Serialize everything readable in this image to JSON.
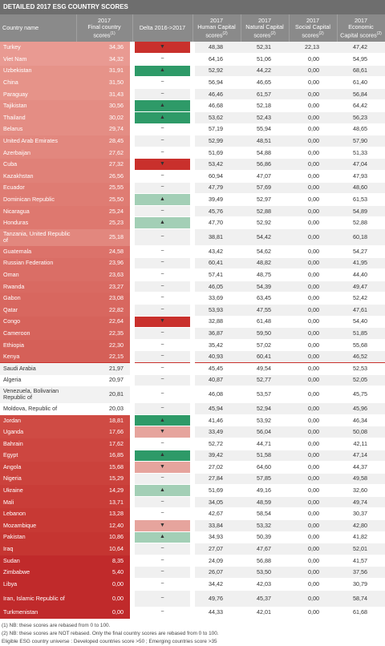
{
  "header": {
    "title": "DETAILED 2017 ESG COUNTRY SCORES"
  },
  "table": {
    "columns": [
      {
        "label": "Country name"
      },
      {
        "year": "2017",
        "label": "Final country scores",
        "note": "(1)"
      },
      {
        "label": "Delta 2016->2017"
      },
      {
        "year": "2017",
        "label": "Human Capital scores",
        "note": "(2)"
      },
      {
        "year": "2017",
        "label": "Natural Capital scores",
        "note": "(2)"
      },
      {
        "year": "2017",
        "label": "Social Capital scores",
        "note": "(2)"
      },
      {
        "year": "2017",
        "label": "Economic Capital scores",
        "note": "(2)"
      }
    ],
    "rows": [
      [
        "Turkey",
        "34,36",
        "▼",
        "48,38",
        "52,31",
        "22,13",
        "47,42"
      ],
      [
        "Viet Nam",
        "34,32",
        "~",
        "64,16",
        "51,06",
        "0,00",
        "54,95"
      ],
      [
        "Uzbekistan",
        "31,91",
        "▲",
        "52,92",
        "44,22",
        "0,00",
        "68,61"
      ],
      [
        "China",
        "31,50",
        "~",
        "56,94",
        "46,65",
        "0,00",
        "61,40"
      ],
      [
        "Paraguay",
        "31,43",
        "~",
        "46,46",
        "61,57",
        "0,00",
        "56,84"
      ],
      [
        "Tajikistan",
        "30,56",
        "▲",
        "46,68",
        "52,18",
        "0,00",
        "64,42"
      ],
      [
        "Thailand",
        "30,02",
        "▲",
        "53,62",
        "52,43",
        "0,00",
        "56,23"
      ],
      [
        "Belarus",
        "29,74",
        "~",
        "57,19",
        "55,94",
        "0,00",
        "48,65"
      ],
      [
        "United Arab Emirates",
        "28,45",
        "~",
        "52,99",
        "48,51",
        "0,00",
        "57,90"
      ],
      [
        "Azerbaijan",
        "27,62",
        "~",
        "51,69",
        "54,88",
        "0,00",
        "51,33"
      ],
      [
        "Cuba",
        "27,32",
        "▼",
        "53,42",
        "56,86",
        "0,00",
        "47,04"
      ],
      [
        "Kazakhstan",
        "26,56",
        "~",
        "60,94",
        "47,07",
        "0,00",
        "47,93"
      ],
      [
        "Ecuador",
        "25,55",
        "~",
        "47,79",
        "57,69",
        "0,00",
        "48,60"
      ],
      [
        "Dominican Republic",
        "25,50",
        "▲",
        "39,49",
        "52,97",
        "0,00",
        "61,53"
      ],
      [
        "Nicaragua",
        "25,24",
        "~",
        "45,76",
        "52,88",
        "0,00",
        "54,89"
      ],
      [
        "Honduras",
        "25,23",
        "▲",
        "47,70",
        "52,92",
        "0,00",
        "52,88"
      ],
      [
        "Tanzania, United Republic of",
        "25,18",
        "~",
        "38,81",
        "54,42",
        "0,00",
        "60,18"
      ],
      [
        "Guatemala",
        "24,58",
        "~",
        "43,42",
        "54,62",
        "0,00",
        "54,27"
      ],
      [
        "Russian Federation",
        "23,96",
        "~",
        "60,41",
        "48,82",
        "0,00",
        "41,95"
      ],
      [
        "Oman",
        "23,63",
        "~",
        "57,41",
        "48,75",
        "0,00",
        "44,40"
      ],
      [
        "Rwanda",
        "23,27",
        "~",
        "46,05",
        "54,39",
        "0,00",
        "49,47"
      ],
      [
        "Gabon",
        "23,08",
        "~",
        "33,69",
        "63,45",
        "0,00",
        "52,42"
      ],
      [
        "Qatar",
        "22,82",
        "~",
        "53,93",
        "47,55",
        "0,00",
        "47,61"
      ],
      [
        "Congo",
        "22,64",
        "▼",
        "32,88",
        "61,48",
        "0,00",
        "54,40"
      ],
      [
        "Cameroon",
        "22,35",
        "~",
        "36,87",
        "59,50",
        "0,00",
        "51,85"
      ],
      [
        "Ethiopia",
        "22,30",
        "~",
        "35,42",
        "57,02",
        "0,00",
        "55,68"
      ],
      [
        "Kenya",
        "22,15",
        "~",
        "40,93",
        "60,41",
        "0,00",
        "46,52"
      ],
      [
        "Saudi Arabia",
        "21,97",
        "~",
        "45,45",
        "49,54",
        "0,00",
        "52,53"
      ],
      [
        "Algeria",
        "20,97",
        "~",
        "40,87",
        "52,77",
        "0,00",
        "52,05"
      ],
      [
        "Venezuela, Bolivarian Republic of",
        "20,81",
        "~",
        "46,08",
        "53,57",
        "0,00",
        "45,75"
      ],
      [
        "Moldova, Republic of",
        "20,03",
        "~",
        "45,94",
        "52,94",
        "0,00",
        "45,96"
      ],
      [
        "Jordan",
        "18,81",
        "▲",
        "41,46",
        "53,92",
        "0,00",
        "46,34"
      ],
      [
        "Uganda",
        "17,66",
        "▼",
        "33,49",
        "56,04",
        "0,00",
        "50,08"
      ],
      [
        "Bahrain",
        "17,62",
        "~",
        "52,72",
        "44,71",
        "0,00",
        "42,11"
      ],
      [
        "Egypt",
        "16,85",
        "▲",
        "39,42",
        "51,58",
        "0,00",
        "47,14"
      ],
      [
        "Angola",
        "15,68",
        "▼",
        "27,02",
        "64,60",
        "0,00",
        "44,37"
      ],
      [
        "Nigeria",
        "15,29",
        "~",
        "27,84",
        "57,85",
        "0,00",
        "49,58"
      ],
      [
        "Ukraine",
        "14,29",
        "▲",
        "51,69",
        "49,16",
        "0,00",
        "32,60"
      ],
      [
        "Mali",
        "13,71",
        "~",
        "34,05",
        "48,59",
        "0,00",
        "49,74"
      ],
      [
        "Lebanon",
        "13,28",
        "~",
        "42,67",
        "58,54",
        "0,00",
        "30,37"
      ],
      [
        "Mozambique",
        "12,40",
        "▼",
        "33,84",
        "53,32",
        "0,00",
        "42,80"
      ],
      [
        "Pakistan",
        "10,86",
        "▲",
        "34,93",
        "50,39",
        "0,00",
        "41,82"
      ],
      [
        "Iraq",
        "10,64",
        "~",
        "27,07",
        "47,67",
        "0,00",
        "52,01"
      ],
      [
        "Sudan",
        "8,35",
        "~",
        "24,09",
        "56,88",
        "0,00",
        "41,57"
      ],
      [
        "Zimbabwe",
        "5,40",
        "~",
        "26,07",
        "53,50",
        "0,00",
        "37,56"
      ],
      [
        "Libya",
        "0,00",
        "~",
        "34,42",
        "42,03",
        "0,00",
        "30,79"
      ],
      [
        "Iran, Islamic Republic of",
        "0,00",
        "~",
        "49,76",
        "45,37",
        "0,00",
        "58,74"
      ],
      [
        "Turkmenistan",
        "0,00",
        "~",
        "44,33",
        "42,01",
        "0,00",
        "61,68"
      ]
    ],
    "row_colors": [
      "#e99a92",
      "#e99a92",
      "#e69389",
      "#e69389",
      "#e69389",
      "#e48d84",
      "#e48d84",
      "#e48d84",
      "#e2877e",
      "#e2877e",
      "#e08178",
      "#e08178",
      "#df7c73",
      "#df7c73",
      "#de786f",
      "#de786f",
      "#e2877e",
      "#dc726a",
      "#da6e66",
      "#da6e66",
      "#d96a62",
      "#d8675f",
      "#d8675f",
      "#d6635b",
      "#d6635b",
      "#d56058",
      "#d56058",
      "#f2f2f2",
      "#ffffff",
      "#f2f2f2",
      "#ffffff",
      "#cf4b44",
      "#cf4b44",
      "#cd4640",
      "#cd4640",
      "#cb423c",
      "#cb423c",
      "#c93d38",
      "#c93d38",
      "#c73934",
      "#c73934",
      "#c53531",
      "#c53531",
      "#c02a2b",
      "#c02a2b",
      "#c02a2b",
      "#c02a2b",
      "#c02a2b"
    ],
    "delta_colors": [
      "#c9302c",
      null,
      "#2e9a68",
      null,
      null,
      "#2e9a68",
      "#2e9a68",
      null,
      null,
      null,
      "#c9302c",
      null,
      null,
      "#a3cfb6",
      null,
      "#a3cfb6",
      null,
      null,
      null,
      null,
      null,
      null,
      null,
      "#c9302c",
      null,
      null,
      null,
      null,
      null,
      null,
      null,
      "#2e9a68",
      "#e6a49d",
      null,
      "#2e9a68",
      "#e6a49d",
      null,
      "#a3cfb6",
      null,
      null,
      "#e6a49d",
      "#a3cfb6",
      null,
      null,
      null,
      null,
      null,
      null
    ],
    "separator_color": "#c9302c",
    "separator_after": 26
  },
  "footnotes": [
    "(1) NB: these scores are rebased from 0 to 100.",
    "(2) NB: these scores are NOT rebased. Only the final country scores are rebased from 0 to 100.",
    "Eligible ESG country universe : Developed countries score >50 ; Emerging countries score >35"
  ]
}
